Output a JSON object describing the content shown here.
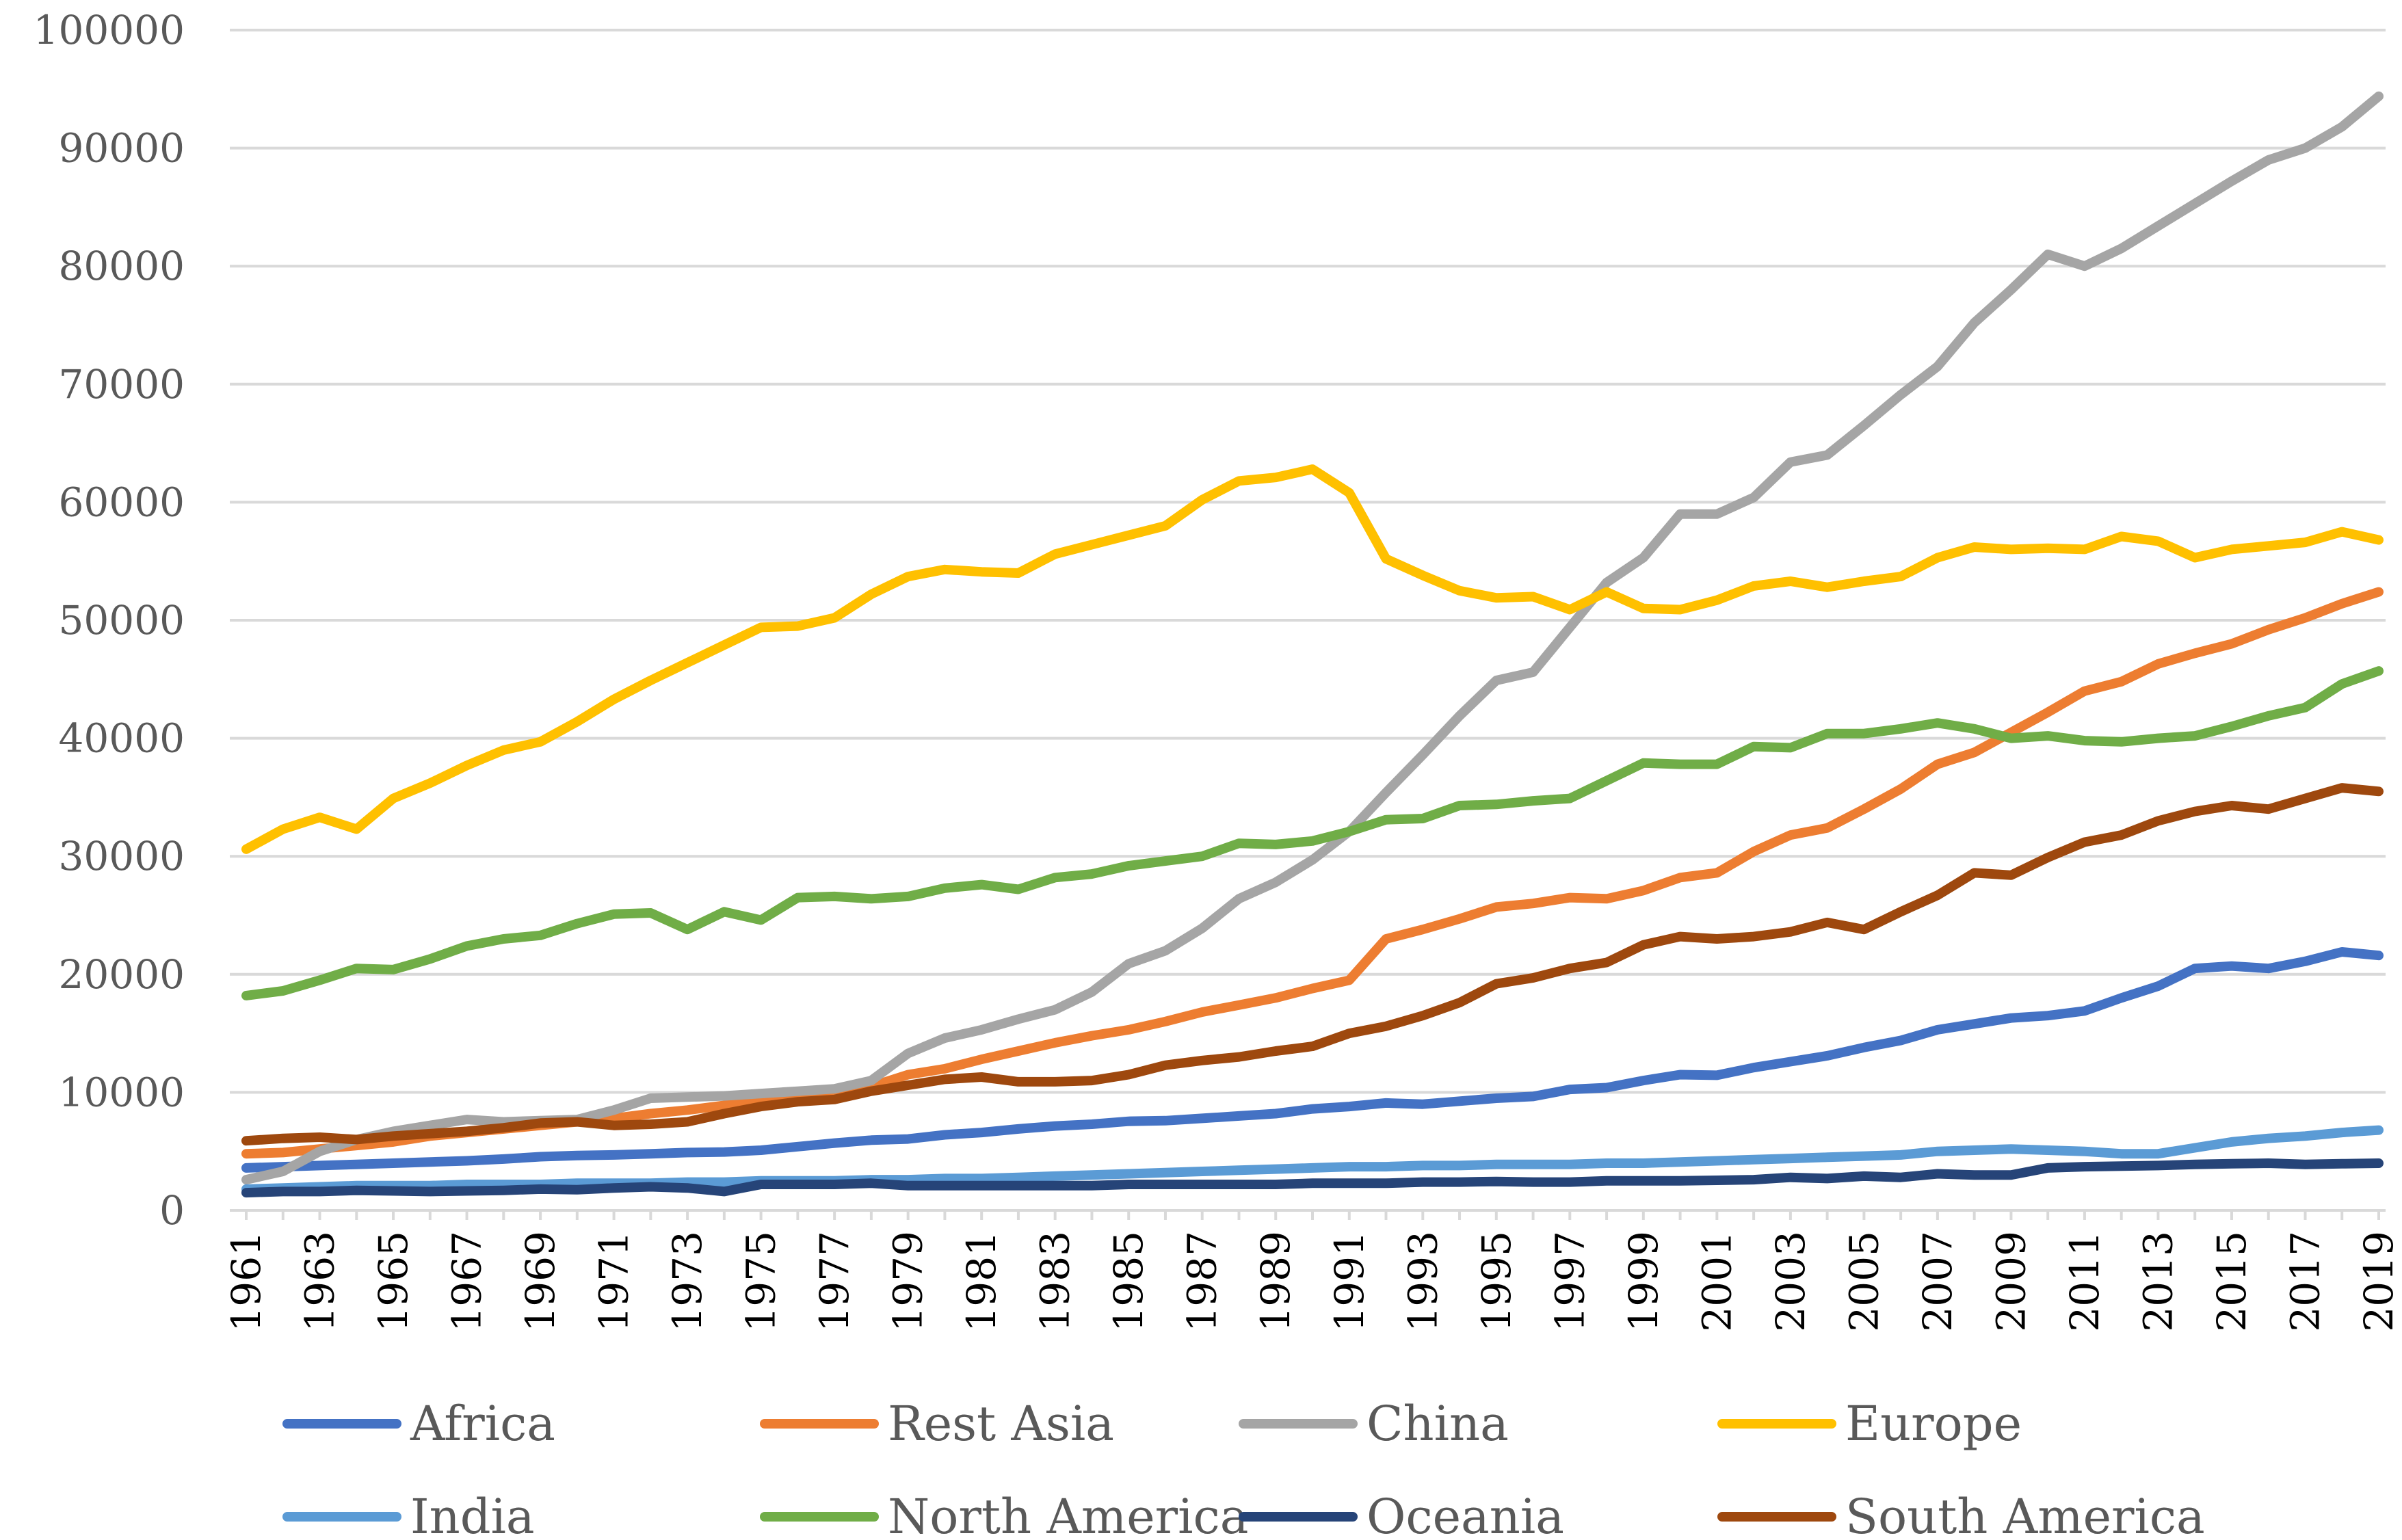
{
  "chart_data": {
    "type": "line",
    "title": "",
    "xlabel": "",
    "ylabel": "",
    "ylim": [
      0,
      100000
    ],
    "yticks": [
      "0",
      "10000",
      "20000",
      "30000",
      "40000",
      "50000",
      "60000",
      "70000",
      "80000",
      "90000",
      "100000"
    ],
    "xtick_labels": [
      "1961",
      "1963",
      "1965",
      "1967",
      "1969",
      "1971",
      "1973",
      "1975",
      "1977",
      "1979",
      "1981",
      "1983",
      "1985",
      "1987",
      "1989",
      "1991",
      "1993",
      "1995",
      "1997",
      "1999",
      "2001",
      "2003",
      "2005",
      "2007",
      "2009",
      "2011",
      "2013",
      "2015",
      "2017",
      "2019"
    ],
    "x": [
      1961,
      1962,
      1963,
      1964,
      1965,
      1966,
      1967,
      1968,
      1969,
      1970,
      1971,
      1972,
      1973,
      1974,
      1975,
      1976,
      1977,
      1978,
      1979,
      1980,
      1981,
      1982,
      1983,
      1984,
      1985,
      1986,
      1987,
      1988,
      1989,
      1990,
      1991,
      1992,
      1993,
      1994,
      1995,
      1996,
      1997,
      1998,
      1999,
      2000,
      2001,
      2002,
      2003,
      2004,
      2005,
      2006,
      2007,
      2008,
      2009,
      2010,
      2011,
      2012,
      2013,
      2014,
      2015,
      2016,
      2017,
      2018,
      2019
    ],
    "grid": true,
    "legend_position": "bottom",
    "series": [
      {
        "name": "Africa",
        "color": "#4472C4",
        "values": [
          3600,
          3700,
          3800,
          3900,
          4000,
          4100,
          4200,
          4350,
          4550,
          4650,
          4700,
          4800,
          4900,
          4950,
          5100,
          5400,
          5700,
          5950,
          6050,
          6400,
          6600,
          6900,
          7150,
          7300,
          7550,
          7600,
          7800,
          8000,
          8200,
          8600,
          8800,
          9100,
          9000,
          9250,
          9500,
          9650,
          10250,
          10400,
          11000,
          11500,
          11450,
          12100,
          12600,
          13100,
          13800,
          14400,
          15300,
          15800,
          16300,
          16500,
          16900,
          18000,
          19000,
          20500,
          20700,
          20500,
          21100,
          21900,
          21600
        ]
      },
      {
        "name": "Rest Asia",
        "color": "#ED7D31",
        "values": [
          4800,
          4900,
          5200,
          5500,
          5800,
          6300,
          6600,
          6900,
          7200,
          7500,
          7800,
          8200,
          8500,
          8900,
          9200,
          9400,
          9700,
          10500,
          11500,
          12000,
          12800,
          13500,
          14200,
          14800,
          15300,
          16000,
          16800,
          17400,
          18000,
          18800,
          19500,
          23000,
          23800,
          24700,
          25700,
          26000,
          26500,
          26400,
          27100,
          28200,
          28600,
          30400,
          31800,
          32400,
          34000,
          35700,
          37800,
          38800,
          40500,
          42200,
          44000,
          44800,
          46300,
          47200,
          48000,
          49200,
          50200,
          51400,
          52400
        ]
      },
      {
        "name": "China",
        "color": "#A5A5A5",
        "values": [
          2600,
          3300,
          5000,
          6000,
          6700,
          7200,
          7700,
          7500,
          7600,
          7700,
          8500,
          9500,
          9600,
          9700,
          9900,
          10100,
          10300,
          11000,
          13300,
          14600,
          15300,
          16200,
          17000,
          18500,
          20900,
          22000,
          23900,
          26400,
          27800,
          29700,
          32100,
          35400,
          38600,
          41900,
          44900,
          45600,
          49400,
          53200,
          55300,
          59000,
          59000,
          60400,
          63400,
          64000,
          66500,
          69100,
          71500,
          75200,
          78000,
          81000,
          80000,
          81500,
          83400,
          85300,
          87200,
          89000,
          90000,
          91800,
          94400
        ]
      },
      {
        "name": "Europe",
        "color": "#FFC000",
        "values": [
          30600,
          32300,
          33300,
          32300,
          34900,
          36200,
          37700,
          39000,
          39700,
          41400,
          43300,
          44900,
          46400,
          47900,
          49400,
          49500,
          50200,
          52200,
          53700,
          54300,
          54100,
          54000,
          55600,
          56400,
          57200,
          58000,
          60200,
          61800,
          62100,
          62800,
          60800,
          55200,
          53800,
          52500,
          51900,
          52000,
          50900,
          52400,
          51000,
          50900,
          51700,
          52900,
          53300,
          52800,
          53300,
          53700,
          55300,
          56200,
          56000,
          56100,
          56000,
          57100,
          56700,
          55300,
          56000,
          56300,
          56600,
          57500,
          56800
        ]
      },
      {
        "name": "India",
        "color": "#5B9BD5",
        "values": [
          1800,
          1900,
          2000,
          2100,
          2100,
          2100,
          2200,
          2200,
          2200,
          2300,
          2300,
          2300,
          2400,
          2400,
          2500,
          2500,
          2500,
          2600,
          2600,
          2700,
          2700,
          2800,
          2900,
          3000,
          3100,
          3200,
          3300,
          3400,
          3500,
          3600,
          3700,
          3700,
          3800,
          3800,
          3900,
          3900,
          3900,
          4000,
          4000,
          4100,
          4200,
          4300,
          4400,
          4500,
          4600,
          4700,
          5000,
          5100,
          5200,
          5100,
          5000,
          4800,
          4800,
          5300,
          5800,
          6100,
          6300,
          6600,
          6800
        ]
      },
      {
        "name": "North America",
        "color": "#70AD47",
        "values": [
          18200,
          18600,
          19500,
          20500,
          20400,
          21300,
          22400,
          23000,
          23300,
          24300,
          25100,
          25200,
          23800,
          25300,
          24600,
          26500,
          26600,
          26400,
          26600,
          27300,
          27600,
          27200,
          28200,
          28500,
          29200,
          29600,
          30000,
          31100,
          31000,
          31300,
          32100,
          33100,
          33200,
          34300,
          34400,
          34700,
          34900,
          36400,
          37900,
          37800,
          37800,
          39300,
          39200,
          40400,
          40400,
          40800,
          41300,
          40800,
          40000,
          40200,
          39800,
          39700,
          40000,
          40200,
          41000,
          41900,
          42600,
          44600,
          45700
        ]
      },
      {
        "name": "Oceania",
        "color": "#264478",
        "values": [
          1500,
          1600,
          1600,
          1700,
          1650,
          1600,
          1650,
          1700,
          1800,
          1750,
          1900,
          2000,
          1900,
          1600,
          2200,
          2200,
          2200,
          2300,
          2100,
          2100,
          2100,
          2100,
          2100,
          2100,
          2200,
          2200,
          2200,
          2200,
          2200,
          2300,
          2300,
          2300,
          2400,
          2400,
          2450,
          2400,
          2400,
          2500,
          2500,
          2500,
          2550,
          2600,
          2800,
          2700,
          2900,
          2800,
          3100,
          3000,
          3000,
          3600,
          3700,
          3750,
          3800,
          3900,
          3950,
          4000,
          3900,
          3950,
          4000
        ]
      },
      {
        "name": "South America",
        "color": "#9E480E",
        "values": [
          5900,
          6100,
          6200,
          6000,
          6300,
          6500,
          6700,
          7000,
          7400,
          7500,
          7200,
          7300,
          7500,
          8200,
          8800,
          9200,
          9400,
          10100,
          10600,
          11100,
          11300,
          10900,
          10900,
          11000,
          11500,
          12300,
          12700,
          13000,
          13500,
          13900,
          15000,
          15600,
          16500,
          17600,
          19200,
          19700,
          20500,
          21000,
          22500,
          23200,
          23000,
          23200,
          23600,
          24400,
          23800,
          25300,
          26700,
          28600,
          28400,
          29900,
          31200,
          31800,
          33000,
          33800,
          34300,
          34000,
          34900,
          35800,
          35500
        ]
      }
    ]
  }
}
